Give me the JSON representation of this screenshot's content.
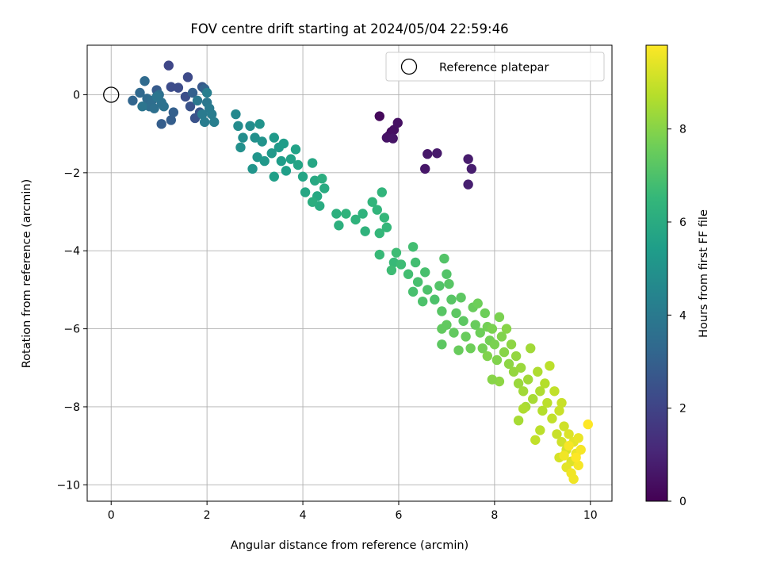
{
  "chart_data": {
    "type": "scatter",
    "title": "FOV centre drift starting at 2024/05/04 22:59:46",
    "xlabel": "Angular distance from reference (arcmin)",
    "ylabel": "Rotation from reference (arcmin)",
    "xlim": [
      -0.5,
      10.45
    ],
    "ylim": [
      -10.42,
      1.27
    ],
    "xticks": [
      "0",
      "2",
      "4",
      "6",
      "8",
      "10"
    ],
    "yticks": [
      "0",
      "−2",
      "−4",
      "−6",
      "−8",
      "−10"
    ],
    "grid": true,
    "legend": {
      "position": "top-right",
      "entries": [
        "Reference platepar"
      ]
    },
    "reference_point": {
      "name": "Reference platepar",
      "x": 0,
      "y": 0
    },
    "colorbar": {
      "label": "Hours from first FF file",
      "range": [
        0,
        9.8
      ],
      "ticks": [
        "0",
        "2",
        "4",
        "6",
        "8"
      ],
      "colormap": "viridis"
    },
    "colormap_stops": [
      "#440154",
      "#482878",
      "#3e4989",
      "#31688e",
      "#26828e",
      "#1f9e89",
      "#35b779",
      "#6ece58",
      "#b5de2b",
      "#fde725"
    ],
    "series": [
      {
        "name": "",
        "values": [
          {
            "x": 5.6,
            "y": -0.55,
            "c": 0.2
          },
          {
            "x": 5.85,
            "y": -0.95,
            "c": 0.3
          },
          {
            "x": 5.8,
            "y": -1.05,
            "c": 0.35
          },
          {
            "x": 5.9,
            "y": -0.9,
            "c": 0.4
          },
          {
            "x": 5.98,
            "y": -0.72,
            "c": 0.45
          },
          {
            "x": 5.75,
            "y": -1.1,
            "c": 0.5
          },
          {
            "x": 5.88,
            "y": -1.12,
            "c": 0.55
          },
          {
            "x": 6.55,
            "y": -1.9,
            "c": 0.6
          },
          {
            "x": 6.6,
            "y": -1.52,
            "c": 0.65
          },
          {
            "x": 6.8,
            "y": -1.5,
            "c": 0.7
          },
          {
            "x": 7.45,
            "y": -1.65,
            "c": 0.75
          },
          {
            "x": 7.52,
            "y": -1.9,
            "c": 0.8
          },
          {
            "x": 7.45,
            "y": -2.3,
            "c": 0.85
          },
          {
            "x": 1.2,
            "y": 0.75,
            "c": 2.1
          },
          {
            "x": 1.6,
            "y": 0.45,
            "c": 2.2
          },
          {
            "x": 1.25,
            "y": 0.2,
            "c": 2.3
          },
          {
            "x": 1.4,
            "y": 0.18,
            "c": 2.3
          },
          {
            "x": 1.55,
            "y": -0.05,
            "c": 2.4
          },
          {
            "x": 1.65,
            "y": -0.3,
            "c": 2.5
          },
          {
            "x": 1.75,
            "y": -0.6,
            "c": 2.5
          },
          {
            "x": 1.85,
            "y": -0.45,
            "c": 2.6
          },
          {
            "x": 1.9,
            "y": 0.2,
            "c": 2.7
          },
          {
            "x": 0.95,
            "y": 0.12,
            "c": 2.8
          },
          {
            "x": 1.05,
            "y": -0.75,
            "c": 2.9
          },
          {
            "x": 1.25,
            "y": -0.65,
            "c": 2.9
          },
          {
            "x": 1.3,
            "y": -0.45,
            "c": 3.0
          },
          {
            "x": 1.7,
            "y": 0.05,
            "c": 3.0
          },
          {
            "x": 1.95,
            "y": 0.15,
            "c": 3.1
          },
          {
            "x": 0.45,
            "y": -0.15,
            "c": 3.2
          },
          {
            "x": 0.6,
            "y": 0.05,
            "c": 3.3
          },
          {
            "x": 0.7,
            "y": 0.35,
            "c": 3.4
          },
          {
            "x": 0.75,
            "y": -0.1,
            "c": 3.4
          },
          {
            "x": 0.8,
            "y": -0.3,
            "c": 3.5
          },
          {
            "x": 0.85,
            "y": -0.15,
            "c": 3.5
          },
          {
            "x": 0.9,
            "y": -0.35,
            "c": 3.6
          },
          {
            "x": 1.0,
            "y": 0.0,
            "c": 3.6
          },
          {
            "x": 1.05,
            "y": -0.2,
            "c": 3.7
          },
          {
            "x": 1.1,
            "y": -0.3,
            "c": 3.7
          },
          {
            "x": 0.65,
            "y": -0.3,
            "c": 3.8
          },
          {
            "x": 0.95,
            "y": -0.05,
            "c": 3.8
          },
          {
            "x": 1.8,
            "y": -0.15,
            "c": 3.9
          },
          {
            "x": 2.0,
            "y": -0.2,
            "c": 3.9
          },
          {
            "x": 2.05,
            "y": -0.35,
            "c": 4.0
          },
          {
            "x": 1.9,
            "y": -0.5,
            "c": 4.0
          },
          {
            "x": 2.1,
            "y": -0.5,
            "c": 4.1
          },
          {
            "x": 1.95,
            "y": -0.7,
            "c": 4.1
          },
          {
            "x": 2.15,
            "y": -0.7,
            "c": 4.2
          },
          {
            "x": 2.0,
            "y": 0.05,
            "c": 4.2
          },
          {
            "x": 2.6,
            "y": -0.5,
            "c": 4.6
          },
          {
            "x": 2.65,
            "y": -0.8,
            "c": 4.7
          },
          {
            "x": 2.75,
            "y": -1.1,
            "c": 4.8
          },
          {
            "x": 2.9,
            "y": -0.8,
            "c": 4.8
          },
          {
            "x": 2.7,
            "y": -1.35,
            "c": 4.9
          },
          {
            "x": 3.0,
            "y": -1.1,
            "c": 4.9
          },
          {
            "x": 3.1,
            "y": -0.75,
            "c": 5.0
          },
          {
            "x": 3.15,
            "y": -1.2,
            "c": 5.0
          },
          {
            "x": 3.05,
            "y": -1.6,
            "c": 5.1
          },
          {
            "x": 2.95,
            "y": -1.9,
            "c": 5.1
          },
          {
            "x": 3.2,
            "y": -1.7,
            "c": 5.2
          },
          {
            "x": 3.35,
            "y": -1.5,
            "c": 5.2
          },
          {
            "x": 3.4,
            "y": -1.1,
            "c": 5.3
          },
          {
            "x": 3.5,
            "y": -1.35,
            "c": 5.3
          },
          {
            "x": 3.6,
            "y": -1.25,
            "c": 5.4
          },
          {
            "x": 3.55,
            "y": -1.7,
            "c": 5.4
          },
          {
            "x": 3.4,
            "y": -2.1,
            "c": 5.5
          },
          {
            "x": 3.65,
            "y": -1.95,
            "c": 5.5
          },
          {
            "x": 3.75,
            "y": -1.65,
            "c": 5.6
          },
          {
            "x": 3.85,
            "y": -1.4,
            "c": 5.6
          },
          {
            "x": 3.9,
            "y": -1.8,
            "c": 5.7
          },
          {
            "x": 4.0,
            "y": -2.1,
            "c": 5.7
          },
          {
            "x": 4.05,
            "y": -2.5,
            "c": 5.8
          },
          {
            "x": 4.2,
            "y": -1.75,
            "c": 5.8
          },
          {
            "x": 4.25,
            "y": -2.2,
            "c": 5.9
          },
          {
            "x": 4.3,
            "y": -2.6,
            "c": 5.9
          },
          {
            "x": 4.35,
            "y": -2.85,
            "c": 6.0
          },
          {
            "x": 4.45,
            "y": -2.4,
            "c": 6.0
          },
          {
            "x": 4.4,
            "y": -2.15,
            "c": 6.1
          },
          {
            "x": 4.2,
            "y": -2.75,
            "c": 6.1
          },
          {
            "x": 4.7,
            "y": -3.05,
            "c": 6.2
          },
          {
            "x": 4.75,
            "y": -3.35,
            "c": 6.2
          },
          {
            "x": 4.9,
            "y": -3.05,
            "c": 6.3
          },
          {
            "x": 5.1,
            "y": -3.2,
            "c": 6.3
          },
          {
            "x": 5.3,
            "y": -3.5,
            "c": 6.3
          },
          {
            "x": 5.25,
            "y": -3.05,
            "c": 6.3
          },
          {
            "x": 5.45,
            "y": -2.75,
            "c": 6.4
          },
          {
            "x": 5.55,
            "y": -2.95,
            "c": 6.4
          },
          {
            "x": 5.65,
            "y": -2.5,
            "c": 6.4
          },
          {
            "x": 5.7,
            "y": -3.15,
            "c": 6.5
          },
          {
            "x": 5.6,
            "y": -3.55,
            "c": 6.5
          },
          {
            "x": 5.75,
            "y": -3.4,
            "c": 6.5
          },
          {
            "x": 5.6,
            "y": -4.1,
            "c": 6.6
          },
          {
            "x": 5.9,
            "y": -4.3,
            "c": 6.6
          },
          {
            "x": 5.95,
            "y": -4.05,
            "c": 6.7
          },
          {
            "x": 5.85,
            "y": -4.5,
            "c": 6.7
          },
          {
            "x": 6.05,
            "y": -4.35,
            "c": 6.7
          },
          {
            "x": 6.2,
            "y": -4.6,
            "c": 6.8
          },
          {
            "x": 6.3,
            "y": -3.9,
            "c": 6.8
          },
          {
            "x": 6.35,
            "y": -4.3,
            "c": 6.8
          },
          {
            "x": 6.4,
            "y": -4.8,
            "c": 6.9
          },
          {
            "x": 6.3,
            "y": -5.05,
            "c": 6.9
          },
          {
            "x": 6.55,
            "y": -4.55,
            "c": 6.9
          },
          {
            "x": 6.6,
            "y": -5.0,
            "c": 7.0
          },
          {
            "x": 6.5,
            "y": -5.3,
            "c": 7.0
          },
          {
            "x": 6.75,
            "y": -5.25,
            "c": 7.0
          },
          {
            "x": 6.85,
            "y": -4.9,
            "c": 7.1
          },
          {
            "x": 6.95,
            "y": -4.2,
            "c": 7.1
          },
          {
            "x": 7.0,
            "y": -4.6,
            "c": 7.1
          },
          {
            "x": 7.05,
            "y": -4.85,
            "c": 7.2
          },
          {
            "x": 6.9,
            "y": -5.55,
            "c": 7.2
          },
          {
            "x": 7.1,
            "y": -5.25,
            "c": 7.2
          },
          {
            "x": 7.2,
            "y": -5.6,
            "c": 7.3
          },
          {
            "x": 7.3,
            "y": -5.2,
            "c": 7.3
          },
          {
            "x": 7.35,
            "y": -5.8,
            "c": 7.3
          },
          {
            "x": 7.0,
            "y": -5.9,
            "c": 7.4
          },
          {
            "x": 6.9,
            "y": -6.0,
            "c": 7.4
          },
          {
            "x": 7.15,
            "y": -6.1,
            "c": 7.4
          },
          {
            "x": 7.4,
            "y": -6.2,
            "c": 7.5
          },
          {
            "x": 7.55,
            "y": -5.45,
            "c": 7.5
          },
          {
            "x": 7.6,
            "y": -5.9,
            "c": 7.5
          },
          {
            "x": 7.7,
            "y": -6.1,
            "c": 7.6
          },
          {
            "x": 7.65,
            "y": -5.35,
            "c": 7.6
          },
          {
            "x": 7.8,
            "y": -5.6,
            "c": 7.6
          },
          {
            "x": 7.85,
            "y": -5.95,
            "c": 7.7
          },
          {
            "x": 7.9,
            "y": -6.3,
            "c": 7.7
          },
          {
            "x": 7.75,
            "y": -6.5,
            "c": 7.7
          },
          {
            "x": 7.95,
            "y": -6.0,
            "c": 7.8
          },
          {
            "x": 8.0,
            "y": -6.4,
            "c": 7.8
          },
          {
            "x": 8.1,
            "y": -5.7,
            "c": 7.8
          },
          {
            "x": 8.15,
            "y": -6.2,
            "c": 7.9
          },
          {
            "x": 7.85,
            "y": -6.7,
            "c": 7.9
          },
          {
            "x": 8.05,
            "y": -6.8,
            "c": 7.9
          },
          {
            "x": 7.25,
            "y": -6.55,
            "c": 7.5
          },
          {
            "x": 6.9,
            "y": -6.4,
            "c": 7.3
          },
          {
            "x": 7.5,
            "y": -6.5,
            "c": 7.6
          },
          {
            "x": 8.2,
            "y": -6.6,
            "c": 8.0
          },
          {
            "x": 8.25,
            "y": -6.0,
            "c": 8.0
          },
          {
            "x": 8.35,
            "y": -6.4,
            "c": 8.1
          },
          {
            "x": 8.3,
            "y": -6.9,
            "c": 8.1
          },
          {
            "x": 8.4,
            "y": -7.1,
            "c": 8.2
          },
          {
            "x": 8.45,
            "y": -6.7,
            "c": 8.2
          },
          {
            "x": 8.5,
            "y": -7.4,
            "c": 8.3
          },
          {
            "x": 8.55,
            "y": -7.0,
            "c": 8.3
          },
          {
            "x": 8.6,
            "y": -7.6,
            "c": 8.4
          },
          {
            "x": 8.7,
            "y": -7.3,
            "c": 8.4
          },
          {
            "x": 8.75,
            "y": -6.5,
            "c": 8.4
          },
          {
            "x": 8.8,
            "y": -7.8,
            "c": 8.5
          },
          {
            "x": 8.65,
            "y": -8.0,
            "c": 8.5
          },
          {
            "x": 8.5,
            "y": -8.35,
            "c": 8.5
          },
          {
            "x": 8.9,
            "y": -7.1,
            "c": 8.6
          },
          {
            "x": 8.95,
            "y": -7.6,
            "c": 8.6
          },
          {
            "x": 9.0,
            "y": -8.1,
            "c": 8.7
          },
          {
            "x": 9.05,
            "y": -7.4,
            "c": 8.7
          },
          {
            "x": 9.1,
            "y": -7.9,
            "c": 8.8
          },
          {
            "x": 9.15,
            "y": -6.95,
            "c": 8.8
          },
          {
            "x": 8.95,
            "y": -8.6,
            "c": 8.8
          },
          {
            "x": 8.85,
            "y": -8.85,
            "c": 8.9
          },
          {
            "x": 9.2,
            "y": -8.3,
            "c": 8.9
          },
          {
            "x": 9.25,
            "y": -7.6,
            "c": 8.9
          },
          {
            "x": 9.3,
            "y": -8.7,
            "c": 9.0
          },
          {
            "x": 9.35,
            "y": -8.1,
            "c": 9.0
          },
          {
            "x": 9.4,
            "y": -7.9,
            "c": 9.0
          },
          {
            "x": 8.1,
            "y": -7.35,
            "c": 8.1
          },
          {
            "x": 7.95,
            "y": -7.3,
            "c": 8.0
          },
          {
            "x": 8.6,
            "y": -8.05,
            "c": 8.6
          },
          {
            "x": 9.4,
            "y": -8.9,
            "c": 9.1
          },
          {
            "x": 9.45,
            "y": -8.5,
            "c": 9.1
          },
          {
            "x": 9.5,
            "y": -9.1,
            "c": 9.2
          },
          {
            "x": 9.35,
            "y": -9.3,
            "c": 9.2
          },
          {
            "x": 9.55,
            "y": -8.7,
            "c": 9.3
          },
          {
            "x": 9.6,
            "y": -9.4,
            "c": 9.3
          },
          {
            "x": 9.65,
            "y": -8.9,
            "c": 9.4
          },
          {
            "x": 9.5,
            "y": -9.55,
            "c": 9.4
          },
          {
            "x": 9.7,
            "y": -9.2,
            "c": 9.5
          },
          {
            "x": 9.75,
            "y": -8.8,
            "c": 9.5
          },
          {
            "x": 9.6,
            "y": -9.7,
            "c": 9.6
          },
          {
            "x": 9.65,
            "y": -9.85,
            "c": 9.6
          },
          {
            "x": 9.8,
            "y": -9.1,
            "c": 9.7
          },
          {
            "x": 9.75,
            "y": -9.5,
            "c": 9.7
          },
          {
            "x": 9.95,
            "y": -8.45,
            "c": 9.8
          },
          {
            "x": 9.7,
            "y": -9.3,
            "c": 9.8
          },
          {
            "x": 9.55,
            "y": -9.0,
            "c": 9.7
          },
          {
            "x": 9.45,
            "y": -9.25,
            "c": 9.6
          }
        ]
      }
    ]
  }
}
